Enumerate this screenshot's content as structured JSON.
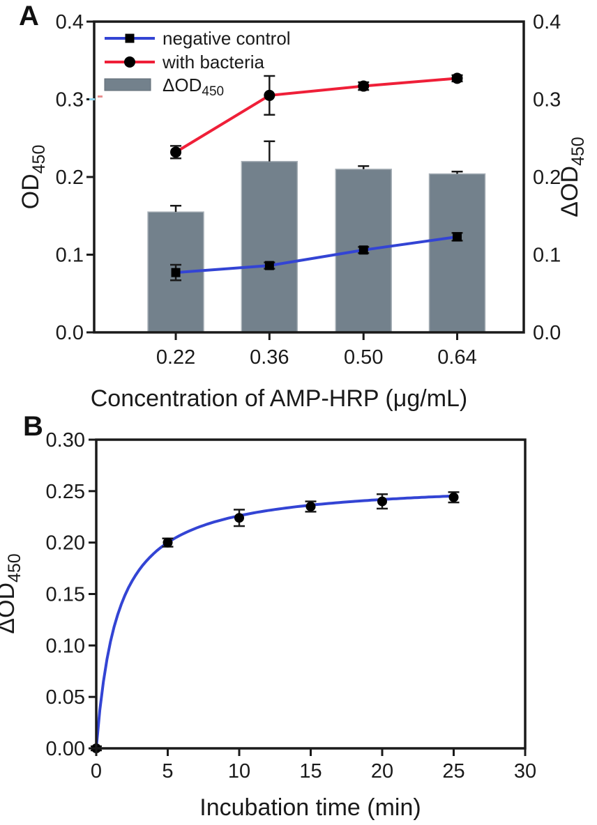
{
  "figure": {
    "panel_a_label": "A",
    "panel_b_label": "B",
    "background": "#ffffff"
  },
  "colors": {
    "axis": "#1a1a1a",
    "blue": "#3344d4",
    "red": "#ef1f38",
    "bar_gray": "#73818c",
    "bar_border": "#a9b1b8",
    "swatch_border": "#5f6b75",
    "marker_black": "#000000",
    "artifact_cyan": "#8ccfe8",
    "artifact_red": "#e89090"
  },
  "chart_data": [
    {
      "id": "A",
      "type": "bar+line",
      "categories": [
        "0.22",
        "0.36",
        "0.50",
        "0.64"
      ],
      "xlabel": "Concentration of AMP-HRP (μg/mL)",
      "ylabel_left": {
        "main": "OD",
        "sub": "450"
      },
      "ylabel_right": {
        "main": "ΔOD",
        "sub": "450"
      },
      "ylim": [
        0,
        0.4
      ],
      "yticks": [
        "0.0",
        "0.1",
        "0.2",
        "0.3",
        "0.4"
      ],
      "legend_bar_label": {
        "main": "ΔOD",
        "sub": "450"
      },
      "line_series": [
        {
          "name": "negative control",
          "marker": "square",
          "color_key": "blue",
          "values": [
            0.077,
            0.086,
            0.106,
            0.123
          ],
          "errors": [
            0.01,
            0.004,
            0.004,
            0.005
          ]
        },
        {
          "name": "with bacteria",
          "marker": "circle",
          "color_key": "red",
          "values": [
            0.232,
            0.305,
            0.317,
            0.327
          ],
          "errors": [
            0.008,
            0.025,
            0.005,
            0.004
          ]
        }
      ],
      "bar_series": {
        "name": "ΔOD450",
        "color_key": "bar_gray",
        "values": [
          0.155,
          0.22,
          0.21,
          0.204
        ],
        "upper_errors": [
          0.008,
          0.026,
          0.004,
          0.003
        ]
      },
      "legend_position": "top-left",
      "grid": false
    },
    {
      "id": "B",
      "type": "line",
      "x": [
        0,
        5,
        10,
        15,
        20,
        25
      ],
      "y": [
        0.0,
        0.2,
        0.224,
        0.235,
        0.24,
        0.244
      ],
      "errors": [
        0.002,
        0.004,
        0.008,
        0.005,
        0.007,
        0.005
      ],
      "fit": {
        "type": "saturation y=a*x/(b+x)",
        "a": 0.26,
        "b": 1.5
      },
      "xlabel": "Incubation time (min)",
      "ylabel": {
        "main": "ΔOD",
        "sub": "450"
      },
      "xlim": [
        0,
        30
      ],
      "xticks": [
        0,
        5,
        10,
        15,
        20,
        25,
        30
      ],
      "ylim": [
        0,
        0.3
      ],
      "yticks": [
        "0.00",
        "0.05",
        "0.10",
        "0.15",
        "0.20",
        "0.25",
        "0.30"
      ],
      "color_key": "blue",
      "grid": false
    }
  ]
}
